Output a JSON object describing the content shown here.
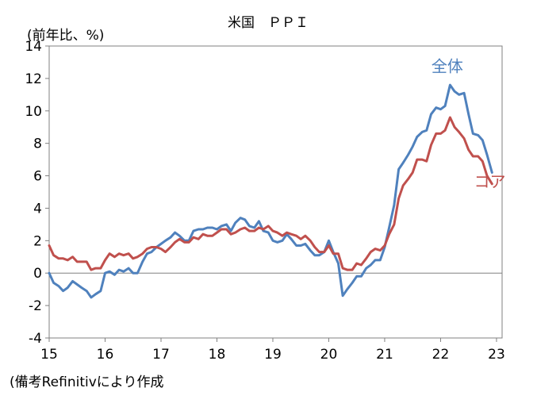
{
  "chart_data": {
    "type": "line",
    "title": "米国　ＰＰＩ",
    "ylabel": "(前年比、%)",
    "xlabel": "",
    "source_note": "(備考Refinitivにより作成",
    "ylim": [
      -4,
      14
    ],
    "yticks": [
      -4,
      -2,
      0,
      2,
      4,
      6,
      8,
      10,
      12,
      14
    ],
    "xlim": [
      2015,
      2023.1
    ],
    "xticks": [
      {
        "value": 2015,
        "label": "15"
      },
      {
        "value": 2016,
        "label": "16"
      },
      {
        "value": 2017,
        "label": "17"
      },
      {
        "value": 2018,
        "label": "18"
      },
      {
        "value": 2019,
        "label": "19"
      },
      {
        "value": 2020,
        "label": "20"
      },
      {
        "value": 2021,
        "label": "21"
      },
      {
        "value": 2022,
        "label": "22"
      },
      {
        "value": 2023,
        "label": "23"
      }
    ],
    "grid": false,
    "zero_line": true,
    "series": [
      {
        "name": "全体",
        "color": "#4f81bd",
        "label_anchor": {
          "x": 2022.12,
          "y": 12.4
        },
        "points": [
          [
            2015.0,
            0.0
          ],
          [
            2015.08,
            -0.6
          ],
          [
            2015.17,
            -0.8
          ],
          [
            2015.25,
            -1.1
          ],
          [
            2015.33,
            -0.9
          ],
          [
            2015.42,
            -0.5
          ],
          [
            2015.5,
            -0.7
          ],
          [
            2015.58,
            -0.9
          ],
          [
            2015.67,
            -1.1
          ],
          [
            2015.75,
            -1.5
          ],
          [
            2015.83,
            -1.3
          ],
          [
            2015.92,
            -1.1
          ],
          [
            2016.0,
            0.0
          ],
          [
            2016.08,
            0.1
          ],
          [
            2016.17,
            -0.1
          ],
          [
            2016.25,
            0.2
          ],
          [
            2016.33,
            0.1
          ],
          [
            2016.42,
            0.3
          ],
          [
            2016.5,
            0.0
          ],
          [
            2016.58,
            0.0
          ],
          [
            2016.67,
            0.7
          ],
          [
            2016.75,
            1.2
          ],
          [
            2016.83,
            1.3
          ],
          [
            2016.92,
            1.6
          ],
          [
            2017.0,
            1.8
          ],
          [
            2017.08,
            2.0
          ],
          [
            2017.17,
            2.2
          ],
          [
            2017.25,
            2.5
          ],
          [
            2017.33,
            2.3
          ],
          [
            2017.42,
            2.0
          ],
          [
            2017.5,
            2.0
          ],
          [
            2017.58,
            2.6
          ],
          [
            2017.67,
            2.7
          ],
          [
            2017.75,
            2.7
          ],
          [
            2017.83,
            2.8
          ],
          [
            2017.92,
            2.8
          ],
          [
            2018.0,
            2.7
          ],
          [
            2018.08,
            2.9
          ],
          [
            2018.17,
            3.0
          ],
          [
            2018.25,
            2.6
          ],
          [
            2018.33,
            3.1
          ],
          [
            2018.42,
            3.4
          ],
          [
            2018.5,
            3.3
          ],
          [
            2018.58,
            2.9
          ],
          [
            2018.67,
            2.8
          ],
          [
            2018.75,
            3.2
          ],
          [
            2018.83,
            2.6
          ],
          [
            2018.92,
            2.5
          ],
          [
            2019.0,
            2.0
          ],
          [
            2019.08,
            1.9
          ],
          [
            2019.17,
            2.0
          ],
          [
            2019.25,
            2.4
          ],
          [
            2019.33,
            2.1
          ],
          [
            2019.42,
            1.7
          ],
          [
            2019.5,
            1.7
          ],
          [
            2019.58,
            1.8
          ],
          [
            2019.67,
            1.4
          ],
          [
            2019.75,
            1.1
          ],
          [
            2019.83,
            1.1
          ],
          [
            2019.92,
            1.3
          ],
          [
            2020.0,
            2.0
          ],
          [
            2020.08,
            1.3
          ],
          [
            2020.17,
            0.6
          ],
          [
            2020.25,
            -1.4
          ],
          [
            2020.33,
            -1.0
          ],
          [
            2020.42,
            -0.6
          ],
          [
            2020.5,
            -0.2
          ],
          [
            2020.58,
            -0.2
          ],
          [
            2020.67,
            0.3
          ],
          [
            2020.75,
            0.5
          ],
          [
            2020.83,
            0.8
          ],
          [
            2020.92,
            0.8
          ],
          [
            2021.0,
            1.6
          ],
          [
            2021.08,
            2.8
          ],
          [
            2021.17,
            4.2
          ],
          [
            2021.25,
            6.4
          ],
          [
            2021.33,
            6.8
          ],
          [
            2021.42,
            7.3
          ],
          [
            2021.5,
            7.8
          ],
          [
            2021.58,
            8.4
          ],
          [
            2021.67,
            8.7
          ],
          [
            2021.75,
            8.8
          ],
          [
            2021.83,
            9.8
          ],
          [
            2021.92,
            10.2
          ],
          [
            2022.0,
            10.1
          ],
          [
            2022.08,
            10.3
          ],
          [
            2022.17,
            11.6
          ],
          [
            2022.25,
            11.2
          ],
          [
            2022.33,
            11.0
          ],
          [
            2022.42,
            11.1
          ],
          [
            2022.5,
            9.8
          ],
          [
            2022.58,
            8.6
          ],
          [
            2022.67,
            8.5
          ],
          [
            2022.75,
            8.2
          ],
          [
            2022.83,
            7.3
          ],
          [
            2022.92,
            6.2
          ]
        ]
      },
      {
        "name": "コア",
        "color": "#c0504d",
        "label_anchor": {
          "x": 2022.88,
          "y": 5.3
        },
        "points": [
          [
            2015.0,
            1.7
          ],
          [
            2015.08,
            1.1
          ],
          [
            2015.17,
            0.9
          ],
          [
            2015.25,
            0.9
          ],
          [
            2015.33,
            0.8
          ],
          [
            2015.42,
            1.0
          ],
          [
            2015.5,
            0.7
          ],
          [
            2015.58,
            0.7
          ],
          [
            2015.67,
            0.7
          ],
          [
            2015.75,
            0.2
          ],
          [
            2015.83,
            0.3
          ],
          [
            2015.92,
            0.3
          ],
          [
            2016.0,
            0.8
          ],
          [
            2016.08,
            1.2
          ],
          [
            2016.17,
            1.0
          ],
          [
            2016.25,
            1.2
          ],
          [
            2016.33,
            1.1
          ],
          [
            2016.42,
            1.2
          ],
          [
            2016.5,
            0.9
          ],
          [
            2016.58,
            1.0
          ],
          [
            2016.67,
            1.2
          ],
          [
            2016.75,
            1.5
          ],
          [
            2016.83,
            1.6
          ],
          [
            2016.92,
            1.6
          ],
          [
            2017.0,
            1.5
          ],
          [
            2017.08,
            1.3
          ],
          [
            2017.17,
            1.6
          ],
          [
            2017.25,
            1.9
          ],
          [
            2017.33,
            2.1
          ],
          [
            2017.42,
            1.9
          ],
          [
            2017.5,
            1.9
          ],
          [
            2017.58,
            2.2
          ],
          [
            2017.67,
            2.1
          ],
          [
            2017.75,
            2.4
          ],
          [
            2017.83,
            2.3
          ],
          [
            2017.92,
            2.3
          ],
          [
            2018.0,
            2.5
          ],
          [
            2018.08,
            2.7
          ],
          [
            2018.17,
            2.7
          ],
          [
            2018.25,
            2.4
          ],
          [
            2018.33,
            2.5
          ],
          [
            2018.42,
            2.7
          ],
          [
            2018.5,
            2.8
          ],
          [
            2018.58,
            2.6
          ],
          [
            2018.67,
            2.6
          ],
          [
            2018.75,
            2.8
          ],
          [
            2018.83,
            2.7
          ],
          [
            2018.92,
            2.9
          ],
          [
            2019.0,
            2.6
          ],
          [
            2019.08,
            2.5
          ],
          [
            2019.17,
            2.3
          ],
          [
            2019.25,
            2.5
          ],
          [
            2019.33,
            2.4
          ],
          [
            2019.42,
            2.3
          ],
          [
            2019.5,
            2.1
          ],
          [
            2019.58,
            2.3
          ],
          [
            2019.67,
            2.0
          ],
          [
            2019.75,
            1.6
          ],
          [
            2019.83,
            1.3
          ],
          [
            2019.92,
            1.3
          ],
          [
            2020.0,
            1.7
          ],
          [
            2020.08,
            1.2
          ],
          [
            2020.17,
            1.2
          ],
          [
            2020.25,
            0.3
          ],
          [
            2020.33,
            0.2
          ],
          [
            2020.42,
            0.2
          ],
          [
            2020.5,
            0.6
          ],
          [
            2020.58,
            0.5
          ],
          [
            2020.67,
            0.9
          ],
          [
            2020.75,
            1.3
          ],
          [
            2020.83,
            1.5
          ],
          [
            2020.92,
            1.4
          ],
          [
            2021.0,
            1.7
          ],
          [
            2021.08,
            2.4
          ],
          [
            2021.17,
            3.0
          ],
          [
            2021.25,
            4.6
          ],
          [
            2021.33,
            5.4
          ],
          [
            2021.42,
            5.8
          ],
          [
            2021.5,
            6.2
          ],
          [
            2021.58,
            7.0
          ],
          [
            2021.67,
            7.0
          ],
          [
            2021.75,
            6.9
          ],
          [
            2021.83,
            7.9
          ],
          [
            2021.92,
            8.6
          ],
          [
            2022.0,
            8.6
          ],
          [
            2022.08,
            8.8
          ],
          [
            2022.17,
            9.6
          ],
          [
            2022.25,
            9.0
          ],
          [
            2022.33,
            8.7
          ],
          [
            2022.42,
            8.3
          ],
          [
            2022.5,
            7.6
          ],
          [
            2022.58,
            7.2
          ],
          [
            2022.67,
            7.2
          ],
          [
            2022.75,
            6.9
          ],
          [
            2022.83,
            6.0
          ],
          [
            2022.92,
            5.5
          ]
        ]
      }
    ]
  }
}
